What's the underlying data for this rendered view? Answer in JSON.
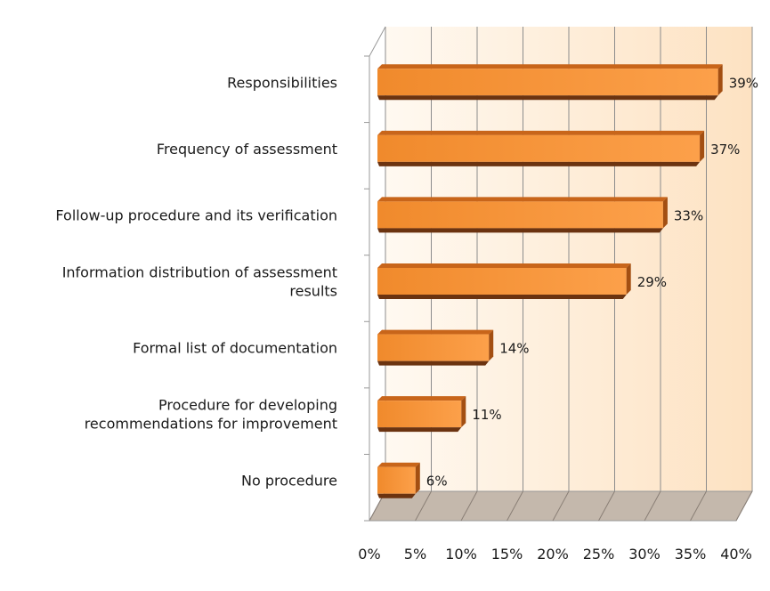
{
  "chart_data": {
    "type": "bar",
    "orientation": "horizontal",
    "style": "3d",
    "categories": [
      "Responsibilities",
      "Frequency of assessment",
      "Follow-up procedure and its verification",
      "Information distribution of assessment results",
      "Formal list of documentation",
      "Procedure for developing recommendations for improvement",
      "No procedure"
    ],
    "category_lines": [
      [
        "Responsibilities"
      ],
      [
        "Frequency of assessment"
      ],
      [
        "Follow-up procedure and its verification"
      ],
      [
        "Information distribution of assessment",
        "results"
      ],
      [
        "Formal list of documentation"
      ],
      [
        "Procedure for developing",
        "recommendations for improvement"
      ],
      [
        "No procedure"
      ]
    ],
    "values": [
      39,
      37,
      33,
      29,
      14,
      11,
      6
    ],
    "data_labels": [
      "39%",
      "37%",
      "33%",
      "29%",
      "14%",
      "11%",
      "6%"
    ],
    "x_ticks": [
      0,
      5,
      10,
      15,
      20,
      25,
      30,
      35,
      40
    ],
    "x_tick_labels": [
      "0%",
      "5%",
      "10%",
      "15%",
      "20%",
      "25%",
      "30%",
      "35%",
      "40%"
    ],
    "xlim": [
      0,
      40
    ],
    "grid": true,
    "legend": "none",
    "colors": {
      "bar_front": "#f08a2c",
      "bar_front_light": "#fca04a",
      "bar_top": "#c8651a",
      "bar_bottom": "#6b3310",
      "bar_end": "#a34f12",
      "floor": "#c4b8ac",
      "wall_light": "#fff9f1",
      "wall_warm": "#fde2c2",
      "gridline": "#8c8c8c",
      "axis": "#999999"
    }
  }
}
